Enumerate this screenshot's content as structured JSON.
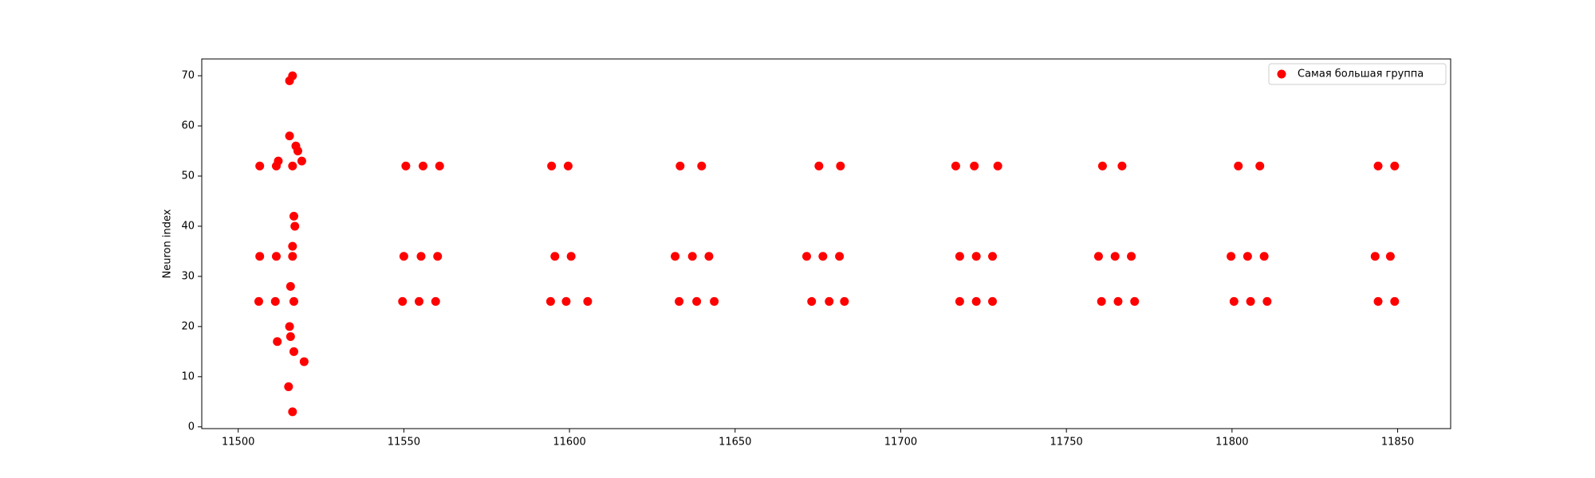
{
  "chart_data": {
    "type": "scatter",
    "ylabel": "Neuron index",
    "series": [
      {
        "name": "Самая большая группа",
        "color": "#ff0000",
        "x": [
          11506.5,
          11506.5,
          11506.2,
          11511.5,
          11511.5,
          11511.2,
          11512.1,
          11511.8,
          11515.5,
          11516.4,
          11515.5,
          11517.4,
          11518,
          11516.4,
          11519.2,
          11516.8,
          11517.1,
          11516.4,
          11516.4,
          11515.8,
          11516.8,
          11515.5,
          11515.8,
          11516.8,
          11519.9,
          11515.2,
          11516.4,
          11550.6,
          11555.8,
          11560.8,
          11550,
          11555.2,
          11560.2,
          11549.6,
          11554.6,
          11559.6,
          11594.6,
          11599.6,
          11595.6,
          11600.5,
          11594.3,
          11599,
          11605.5,
          11633.4,
          11639.9,
          11631.9,
          11637.1,
          11642.1,
          11633.1,
          11638.4,
          11643.7,
          11675.3,
          11681.8,
          11671.6,
          11676.5,
          11681.5,
          11673.1,
          11678.4,
          11683,
          11716.6,
          11722.2,
          11729.3,
          11717.8,
          11722.8,
          11727.7,
          11717.8,
          11722.8,
          11727.7,
          11760.9,
          11766.8,
          11759.7,
          11764.7,
          11769.6,
          11760.6,
          11765.6,
          11770.6,
          11801.9,
          11808.4,
          11799.7,
          11804.7,
          11809.7,
          11800.6,
          11805.6,
          11810.6,
          11844.1,
          11849.1,
          11843.2,
          11847.8,
          11844.1,
          11849.1
        ],
        "values": [
          52,
          34,
          25,
          52,
          34,
          25,
          53,
          17,
          69,
          70,
          58,
          56,
          55,
          52,
          53,
          42,
          40,
          36,
          34,
          28,
          25,
          20,
          18,
          15,
          13,
          8,
          3,
          52,
          52,
          52,
          34,
          34,
          34,
          25,
          25,
          25,
          52,
          52,
          34,
          34,
          25,
          25,
          25,
          52,
          52,
          34,
          34,
          34,
          25,
          25,
          25,
          52,
          52,
          34,
          34,
          34,
          25,
          25,
          25,
          52,
          52,
          52,
          34,
          34,
          34,
          25,
          25,
          25,
          52,
          52,
          34,
          34,
          34,
          25,
          25,
          25,
          52,
          52,
          34,
          34,
          34,
          25,
          25,
          25,
          52,
          52,
          34,
          34,
          25,
          25
        ]
      }
    ],
    "xlim": [
      11489,
      11866
    ],
    "ylim": [
      -0.35,
      73.35
    ],
    "xticks": [
      11500,
      11550,
      11600,
      11650,
      11700,
      11750,
      11800,
      11850
    ],
    "yticks": [
      0,
      10,
      20,
      30,
      40,
      50,
      60,
      70
    ],
    "legend": "upper right"
  }
}
